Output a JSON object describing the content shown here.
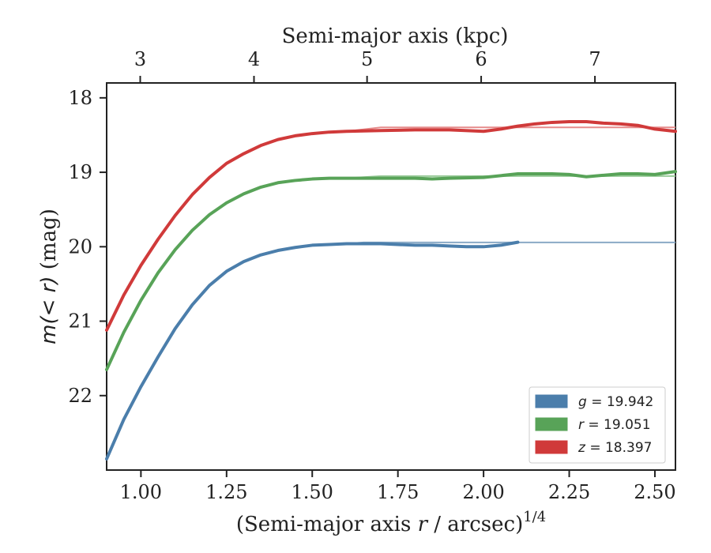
{
  "chart_data": {
    "type": "line",
    "xlabel": "(Semi-major axis r / arcsec)",
    "xlabel_italic_var": "r",
    "xlabel_pre": "(Semi-major axis ",
    "xlabel_post": " / arcsec)",
    "xlabel_exp": "1/4",
    "ylabel_pre": "m(",
    "ylabel_mid": "< r",
    "ylabel_post": ") (mag)",
    "x2label": "Semi-major axis (kpc)",
    "xlim": [
      0.9,
      2.56
    ],
    "ylim": [
      23.0,
      17.8
    ],
    "y_inverted": true,
    "xticks": [
      1.0,
      1.25,
      1.5,
      1.75,
      2.0,
      2.25,
      2.5
    ],
    "xtick_labels": [
      "1.00",
      "1.25",
      "1.50",
      "1.75",
      "2.00",
      "2.25",
      "2.50"
    ],
    "yticks": [
      18,
      19,
      20,
      21,
      22
    ],
    "ytick_labels": [
      "18",
      "19",
      "20",
      "21",
      "22"
    ],
    "x2ticks": [
      3,
      4,
      5,
      6,
      7
    ],
    "x2tick_labels": [
      "3",
      "4",
      "5",
      "6",
      "7"
    ],
    "x2_positions": [
      0.998,
      1.33,
      1.66,
      1.993,
      2.325
    ],
    "legend_position": "lower-right",
    "grid": false,
    "series": [
      {
        "name": "g = 19.942",
        "band": "g",
        "value": "19.942",
        "color": "#4b7eab",
        "model_color": "#8aaac6",
        "total": 19.942,
        "model_end": 2.56,
        "x": [
          0.9,
          0.95,
          1.0,
          1.05,
          1.1,
          1.15,
          1.2,
          1.25,
          1.3,
          1.35,
          1.4,
          1.45,
          1.5,
          1.55,
          1.6,
          1.65,
          1.7,
          1.75,
          1.8,
          1.85,
          1.9,
          1.95,
          2.0,
          2.05,
          2.1
        ],
        "y": [
          22.85,
          22.32,
          21.88,
          21.48,
          21.1,
          20.78,
          20.52,
          20.33,
          20.2,
          20.11,
          20.05,
          20.01,
          19.98,
          19.97,
          19.96,
          19.96,
          19.96,
          19.97,
          19.98,
          19.98,
          19.99,
          20.0,
          20.0,
          19.98,
          19.94
        ]
      },
      {
        "name": "r = 19.051",
        "band": "r",
        "value": "19.051",
        "color": "#58a358",
        "model_color": "#9acb9a",
        "total": 19.051,
        "model_end": 2.56,
        "x": [
          0.9,
          0.95,
          1.0,
          1.05,
          1.1,
          1.15,
          1.2,
          1.25,
          1.3,
          1.35,
          1.4,
          1.45,
          1.5,
          1.55,
          1.6,
          1.7,
          1.8,
          1.85,
          1.9,
          2.0,
          2.1,
          2.2,
          2.25,
          2.3,
          2.35,
          2.4,
          2.45,
          2.5,
          2.56
        ],
        "y": [
          21.65,
          21.15,
          20.72,
          20.35,
          20.04,
          19.78,
          19.57,
          19.41,
          19.29,
          19.2,
          19.14,
          19.11,
          19.09,
          19.08,
          19.08,
          19.08,
          19.08,
          19.09,
          19.08,
          19.07,
          19.02,
          19.02,
          19.03,
          19.06,
          19.04,
          19.02,
          19.02,
          19.03,
          18.99
        ]
      },
      {
        "name": "z = 18.397",
        "band": "z",
        "value": "18.397",
        "color": "#d03a3a",
        "model_color": "#e68b8b",
        "total": 18.397,
        "model_end": 2.56,
        "x": [
          0.9,
          0.95,
          1.0,
          1.05,
          1.1,
          1.15,
          1.2,
          1.25,
          1.3,
          1.35,
          1.4,
          1.45,
          1.5,
          1.55,
          1.6,
          1.7,
          1.8,
          1.9,
          2.0,
          2.05,
          2.1,
          2.15,
          2.2,
          2.25,
          2.3,
          2.35,
          2.4,
          2.45,
          2.5,
          2.56
        ],
        "y": [
          21.12,
          20.65,
          20.25,
          19.9,
          19.58,
          19.3,
          19.07,
          18.88,
          18.75,
          18.64,
          18.56,
          18.51,
          18.48,
          18.46,
          18.45,
          18.44,
          18.43,
          18.43,
          18.45,
          18.42,
          18.38,
          18.35,
          18.33,
          18.32,
          18.32,
          18.34,
          18.35,
          18.37,
          18.42,
          18.45
        ]
      }
    ]
  }
}
